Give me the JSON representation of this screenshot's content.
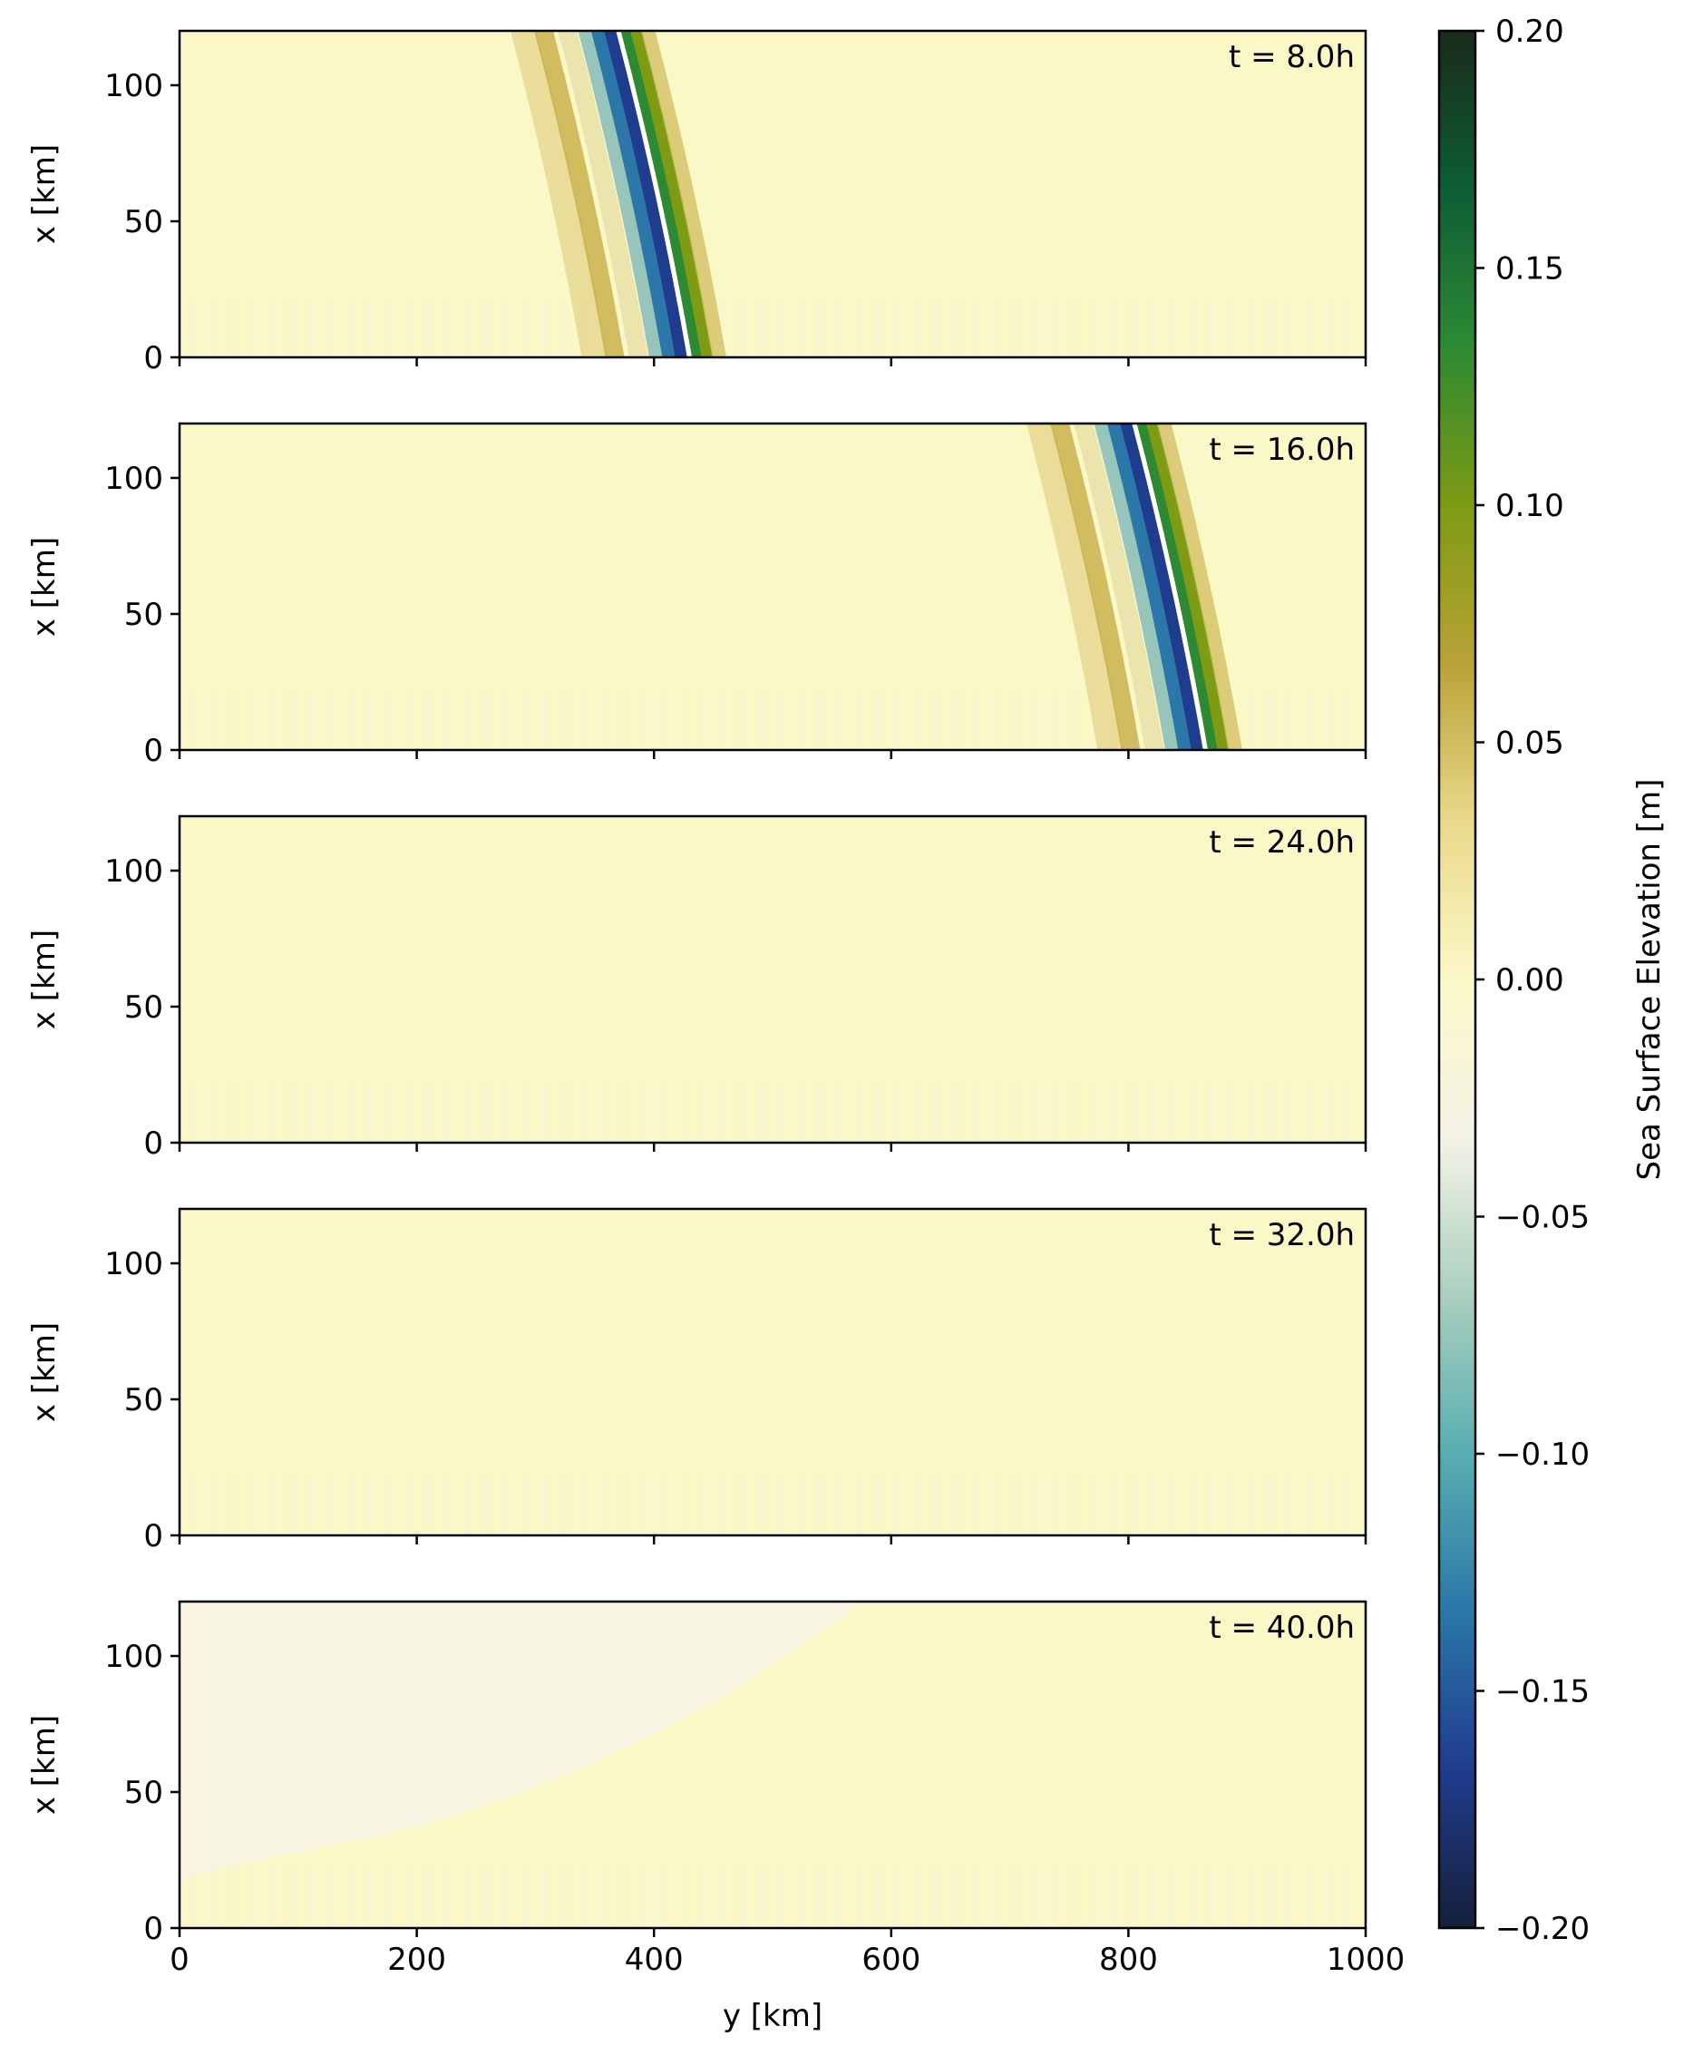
{
  "chart_data": {
    "type": "heatmap",
    "description_panels": "five stacked field snapshots sharing the y axis",
    "xlabel": "y [km]",
    "ylabel": "x [km]",
    "xlim": [
      0,
      1000
    ],
    "ylim": [
      0,
      120
    ],
    "x_ticks": [
      "0",
      "200",
      "400",
      "600",
      "800",
      "1000"
    ],
    "y_ticks": [
      "0",
      "50",
      "100"
    ],
    "panels": [
      {
        "time_label": "t = 8.0h",
        "wave_front": {
          "y_at_x0": 425,
          "y_at_x120": 365,
          "amplitude_max": 0.14,
          "amplitude_min": -0.17
        }
      },
      {
        "time_label": "t = 16.0h",
        "wave_front": {
          "y_at_x0": 860,
          "y_at_x120": 800,
          "amplitude_max": 0.15,
          "amplitude_min": -0.17
        }
      },
      {
        "time_label": "t = 24.0h",
        "wave_front": null
      },
      {
        "time_label": "t = 32.0h",
        "wave_front": null
      },
      {
        "time_label": "t = 40.0h",
        "wave_front": null,
        "note_region": "weak negative region in upper left"
      }
    ],
    "colorbar": {
      "label": "Sea Surface Elevation [m]",
      "vmin": -0.2,
      "vmax": 0.2,
      "ticks": [
        "0.20",
        "0.15",
        "0.10",
        "0.05",
        "0.00",
        "−0.05",
        "−0.10",
        "−0.15",
        "−0.20"
      ],
      "colormap": [
        "#16203a",
        "#203c8e",
        "#2a77a8",
        "#58aeb0",
        "#aacfbe",
        "#f4f3e6",
        "#fbf8c8",
        "#e9d98a",
        "#b9a236",
        "#7d9b13",
        "#2d8a33",
        "#0d5e35",
        "#1a2a19"
      ]
    }
  }
}
